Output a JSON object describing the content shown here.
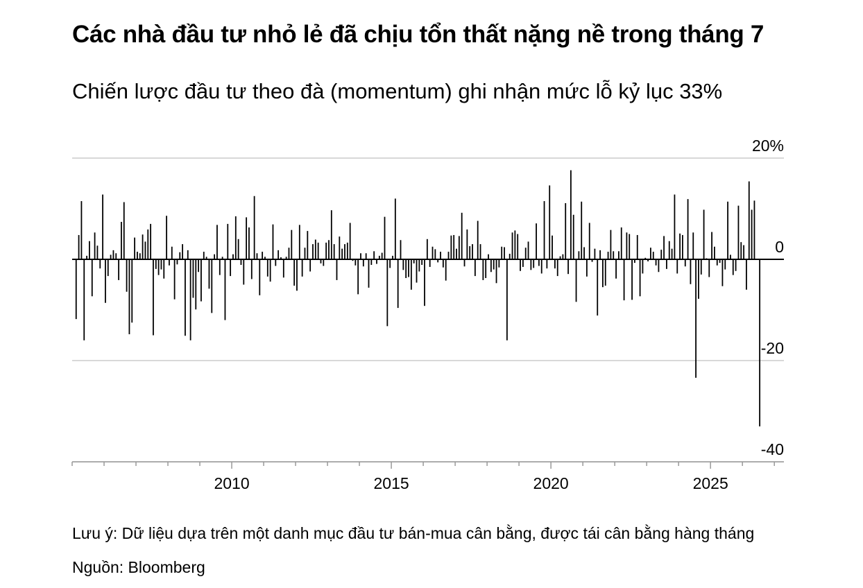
{
  "header": {
    "title": "Các nhà đầu tư nhỏ lẻ đã chịu tổn thất nặng nề trong tháng 7",
    "subtitle": "Chiến lược đầu tư theo đà (momentum) ghi nhận mức lỗ kỷ lục 33%"
  },
  "footer": {
    "note": "Lưu ý: Dữ liệu dựa trên một danh mục đầu tư bán-mua cân bằng, được tái cân bằng hàng tháng",
    "source": "Nguồn: Bloomberg"
  },
  "colors": {
    "bars": "#000000",
    "grid": "#cccccc",
    "zero_line": "#000000",
    "axis": "#999999"
  },
  "chart_data": {
    "type": "bar",
    "x_start": "2005-02",
    "x_frequency": "monthly",
    "xlim": [
      2005.0,
      2027.3
    ],
    "ylim": [
      -40,
      20
    ],
    "grid": true,
    "y_ticks": [
      {
        "value": 20,
        "label": "20%"
      },
      {
        "value": 0,
        "label": "0"
      },
      {
        "value": -20,
        "label": "-20"
      },
      {
        "value": -40,
        "label": "-40"
      }
    ],
    "x_ticks": [
      {
        "value": 2010,
        "label": "2010"
      },
      {
        "value": 2015,
        "label": "2015"
      },
      {
        "value": 2020,
        "label": "2020"
      },
      {
        "value": 2025,
        "label": "2025"
      }
    ],
    "values": [
      -11.8,
      4.8,
      11.5,
      -16.0,
      0.7,
      3.6,
      -7.3,
      5.3,
      2.7,
      -1.8,
      12.8,
      -8.6,
      -3.3,
      0.9,
      1.8,
      1.2,
      -4.1,
      7.4,
      11.3,
      -6.4,
      -14.8,
      -12.5,
      4.3,
      1.5,
      1.2,
      4.9,
      3.5,
      5.9,
      7.0,
      -15.0,
      -1.9,
      -3.1,
      -2.0,
      -3.8,
      8.6,
      -1.2,
      2.5,
      -7.9,
      -1.0,
      1.4,
      3.0,
      -15.1,
      1.8,
      -16.0,
      -7.6,
      -9.9,
      -2.5,
      -8.3,
      1.5,
      0.5,
      -5.8,
      -10.6,
      1.0,
      6.8,
      -3.1,
      0.5,
      -12.0,
      7.0,
      -3.3,
      1.0,
      8.5,
      4.0,
      -1.1,
      -5.0,
      8.3,
      6.3,
      -3.9,
      12.5,
      1.2,
      -7.1,
      1.5,
      0.5,
      -3.4,
      -4.4,
      6.9,
      -1.3,
      1.8,
      0.4,
      -3.6,
      0.5,
      2.3,
      5.8,
      -5.2,
      -6.2,
      6.8,
      -3.4,
      2.3,
      5.6,
      -2.4,
      3.0,
      3.9,
      3.3,
      -0.8,
      -1.3,
      3.3,
      3.8,
      9.7,
      3.0,
      -4.1,
      4.5,
      2.1,
      3.0,
      3.3,
      7.2,
      -0.3,
      -1.2,
      -6.9,
      1.2,
      -1.4,
      1.2,
      -5.6,
      -1.1,
      1.6,
      -0.9,
      0.7,
      1.3,
      8.4,
      -13.2,
      -1.7,
      0.7,
      12.0,
      -9.6,
      3.8,
      -2.1,
      -3.7,
      -3.5,
      -6.0,
      -0.8,
      -4.6,
      -2.4,
      -1.1,
      -9.2,
      4.0,
      -1.5,
      2.5,
      2.0,
      -0.6,
      1.5,
      -1.6,
      -4.2,
      1.5,
      4.7,
      4.8,
      2.1,
      4.6,
      9.2,
      -1.4,
      5.9,
      2.6,
      3.0,
      -3.3,
      7.6,
      3.0,
      -4.1,
      -3.7,
      1.0,
      -2.5,
      -2.0,
      -4.7,
      -1.6,
      2.5,
      2.4,
      -16.0,
      1.1,
      5.3,
      5.7,
      5.0,
      -2.3,
      -1.5,
      2.3,
      3.5,
      -2.1,
      -1.7,
      7.1,
      -1.3,
      -2.8,
      11.5,
      -1.8,
      14.6,
      4.7,
      -1.8,
      -3.3,
      0.6,
      1.0,
      11.1,
      -2.9,
      17.6,
      8.8,
      -8.4,
      1.6,
      11.4,
      2.4,
      -3.4,
      7.2,
      -0.5,
      2.1,
      -11.1,
      1.8,
      -5.5,
      -5.2,
      1.5,
      5.8,
      1.6,
      -3.8,
      1.6,
      6.3,
      -8.1,
      5.3,
      5.0,
      -8.0,
      -0.7,
      4.8,
      -7.3,
      -2.8,
      0.3,
      -0.4,
      2.3,
      1.5,
      -1.2,
      -2.5,
      1.9,
      4.6,
      -1.9,
      3.6,
      2.1,
      12.8,
      -2.8,
      5.1,
      4.8,
      -1.4,
      11.9,
      -4.9,
      5.3,
      -23.4,
      -7.8,
      -3.0,
      9.8,
      0.2,
      -3.5,
      5.4,
      2.5,
      -1.2,
      -0.7,
      -5.3,
      -2.0,
      11.4,
      0.9,
      -3.1,
      -2.3,
      10.6,
      3.4,
      2.8,
      -6.0,
      15.4,
      9.8,
      11.6,
      0.0,
      -33.0
    ]
  }
}
